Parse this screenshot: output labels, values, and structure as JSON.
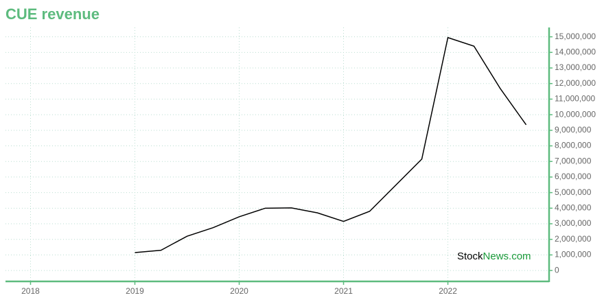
{
  "chart_data": {
    "type": "line",
    "title": "CUE revenue",
    "x": [
      2019,
      2019.25,
      2019.5,
      2019.75,
      2020,
      2020.25,
      2020.5,
      2020.75,
      2021,
      2021.25,
      2021.75,
      2022,
      2022.25,
      2022.5,
      2022.75
    ],
    "series": [
      {
        "name": "CUE revenue",
        "color": "#000000",
        "values": [
          1150000,
          1300000,
          2200000,
          2750000,
          3450000,
          4000000,
          4020000,
          3700000,
          3150000,
          3800000,
          7150000,
          14950000,
          14400000,
          11700000,
          9350000
        ]
      }
    ],
    "xlim": [
      2017.76,
      2022.97
    ],
    "xticks": [
      2018,
      2019,
      2020,
      2021,
      2022
    ],
    "ylim": [
      -700000,
      15600000
    ],
    "yticks": [
      0,
      {
        "value": 1000000,
        "label": "1,000,000"
      },
      {
        "value": 2000000,
        "label": "2,000,000"
      },
      {
        "value": 3000000,
        "label": "3,000,000"
      },
      {
        "value": 4000000,
        "label": "4,000,000"
      },
      {
        "value": 5000000,
        "label": "5,000,000"
      },
      {
        "value": 6000000,
        "label": "6,000,000"
      },
      {
        "value": 7000000,
        "label": "7,000,000"
      },
      {
        "value": 8000000,
        "label": "8,000,000"
      },
      {
        "value": 9000000,
        "label": "9,000,000"
      },
      {
        "value": 10000000,
        "label": "10,000,000"
      },
      {
        "value": 11000000,
        "label": "11,000,000"
      },
      {
        "value": 12000000,
        "label": "12,000,000"
      },
      {
        "value": 13000000,
        "label": "13,000,000"
      },
      {
        "value": 14000000,
        "label": "14,000,000"
      },
      {
        "value": 15000000,
        "label": "15,000,000"
      }
    ],
    "grid": true,
    "watermark": [
      "Stock",
      "News.com"
    ]
  }
}
